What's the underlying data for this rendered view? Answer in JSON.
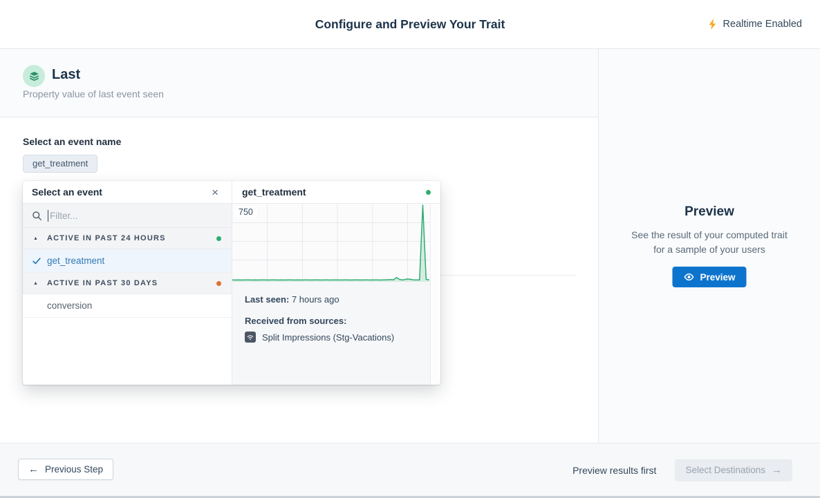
{
  "header": {
    "title": "Configure and Preview Your Trait",
    "realtime_label": "Realtime Enabled"
  },
  "trait": {
    "name": "Last",
    "description": "Property value of last event seen"
  },
  "form": {
    "event_label": "Select an event name",
    "selected_event_chip": "get_treatment"
  },
  "event_picker": {
    "title": "Select an event",
    "filter_placeholder": "Filter...",
    "groups": [
      {
        "label": "ACTIVE IN PAST 24 HOURS",
        "status_color": "#2fad6e",
        "items": [
          {
            "name": "get_treatment",
            "selected": true
          }
        ]
      },
      {
        "label": "ACTIVE IN PAST 30 DAYS",
        "status_color": "#e0702f",
        "items": [
          {
            "name": "conversion",
            "selected": false
          }
        ]
      }
    ]
  },
  "event_detail": {
    "title": "get_treatment",
    "status_color": "#2fad6e",
    "last_seen_label": "Last seen:",
    "last_seen_value": "7 hours ago",
    "sources_label": "Received from sources:",
    "source_name": "Split Impressions (Stg-Vacations)"
  },
  "chart_data": {
    "type": "area",
    "title": "get_treatment event volume over time",
    "xlabel": "",
    "ylabel": "",
    "y_tick_label": "750",
    "ylim": [
      0,
      750
    ],
    "grid": true,
    "legend": false,
    "line_color": "#2fad6e",
    "fill_color": "rgba(47,173,110,0.18)",
    "grid_color": "#e7e9ec",
    "values": [
      5,
      4,
      5,
      4,
      5,
      5,
      4,
      5,
      4,
      5,
      5,
      4,
      5,
      5,
      4,
      5,
      4,
      5,
      5,
      4,
      5,
      4,
      5,
      5,
      4,
      5,
      5,
      4,
      5,
      5,
      4,
      5,
      5,
      4,
      5,
      5,
      4,
      5,
      5,
      4,
      5,
      5,
      4,
      5,
      5,
      4,
      5,
      6,
      8,
      6,
      28,
      8,
      5,
      13,
      13,
      6,
      5,
      5,
      750,
      12,
      5
    ]
  },
  "preview_panel": {
    "title": "Preview",
    "description_line1": "See the result of your computed trait",
    "description_line2": "for a sample of your users",
    "button_label": "Preview"
  },
  "footer": {
    "previous_label": "Previous Step",
    "hint": "Preview results first",
    "next_label": "Select Destinations"
  },
  "icons": {
    "arrow_left": "←",
    "arrow_right": "→",
    "close": "×",
    "collapse": "▲"
  },
  "colors": {
    "accent_blue": "#0d74ce",
    "lightning_orange": "#f6a723",
    "trait_icon_green_bg": "#c7ecdc",
    "trait_icon_green": "#2c9069",
    "selected_item_blue": "#3079b8",
    "green_dot": "#2fad6e",
    "orange_dot": "#e0702f"
  }
}
